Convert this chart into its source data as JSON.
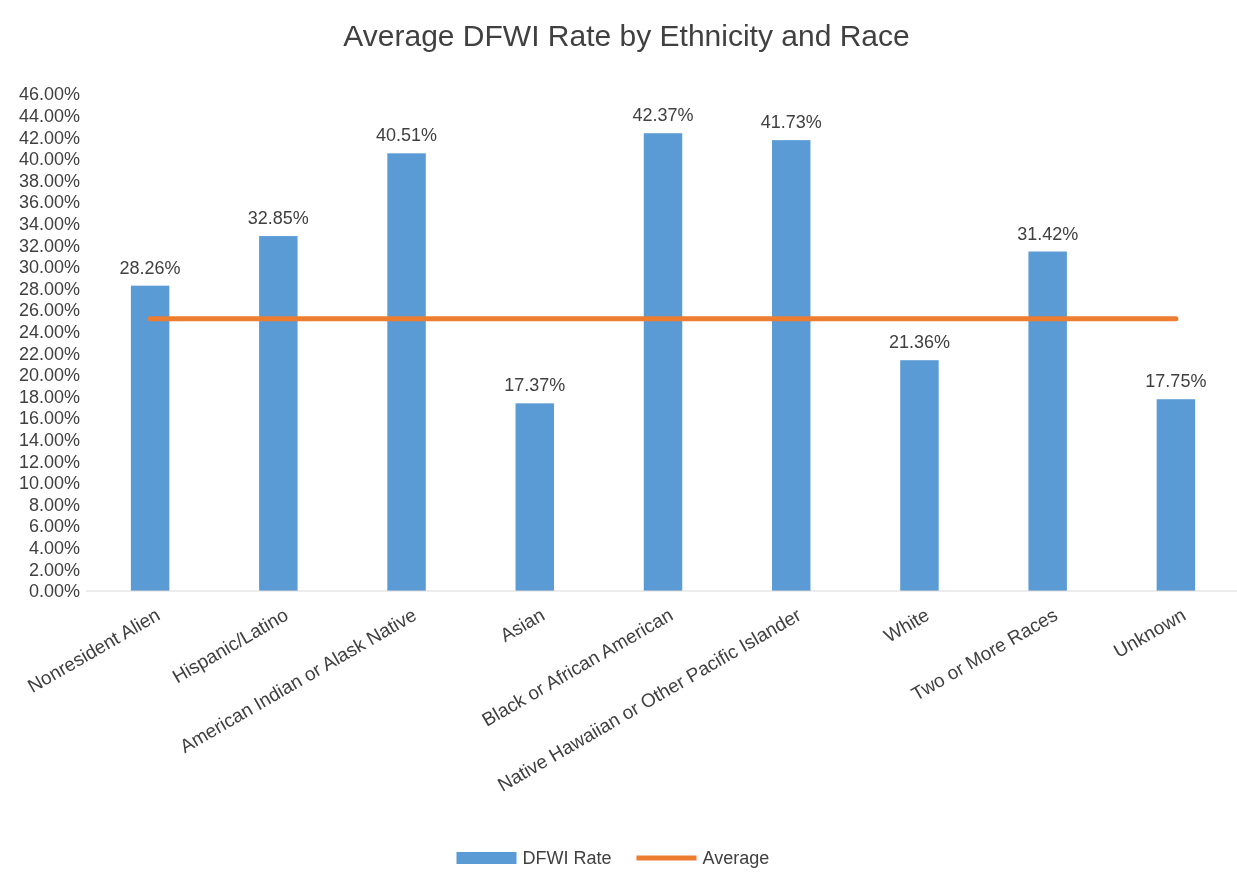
{
  "chart_data": {
    "type": "bar",
    "title": "Average DFWI Rate by Ethnicity and Race",
    "categories": [
      "Nonresident Alien",
      "Hispanic/Latino",
      "American Indian or Alask Native",
      "Asian",
      "Black or African American",
      "Native Hawaiian or Other Pacific Islander",
      "White",
      "Two or More Races",
      "Unknown"
    ],
    "series": [
      {
        "name": "DFWI Rate",
        "color": "#5b9bd5",
        "values": [
          28.26,
          32.85,
          40.51,
          17.37,
          42.37,
          41.73,
          21.36,
          31.42,
          17.75
        ],
        "value_labels": [
          "28.26%",
          "32.85%",
          "40.51%",
          "17.37%",
          "42.37%",
          "41.73%",
          "21.36%",
          "31.42%",
          "17.75%"
        ]
      },
      {
        "name": "Average",
        "type": "line",
        "color": "#ed7d31",
        "values": [
          25.2,
          25.2,
          25.2,
          25.2,
          25.2,
          25.2,
          25.2,
          25.2,
          25.2
        ]
      }
    ],
    "ylim": [
      0,
      46
    ],
    "yticks": [
      {
        "value": 0,
        "label": "0.00%"
      },
      {
        "value": 2,
        "label": "2.00%"
      },
      {
        "value": 4,
        "label": "4.00%"
      },
      {
        "value": 6,
        "label": "6.00%"
      },
      {
        "value": 8,
        "label": "8.00%"
      },
      {
        "value": 10,
        "label": "10.00%"
      },
      {
        "value": 12,
        "label": "12.00%"
      },
      {
        "value": 14,
        "label": "14.00%"
      },
      {
        "value": 16,
        "label": "16.00%"
      },
      {
        "value": 18,
        "label": "18.00%"
      },
      {
        "value": 20,
        "label": "20.00%"
      },
      {
        "value": 22,
        "label": "22.00%"
      },
      {
        "value": 24,
        "label": "24.00%"
      },
      {
        "value": 26,
        "label": "26.00%"
      },
      {
        "value": 28,
        "label": "28.00%"
      },
      {
        "value": 30,
        "label": "30.00%"
      },
      {
        "value": 32,
        "label": "32.00%"
      },
      {
        "value": 34,
        "label": "34.00%"
      },
      {
        "value": 36,
        "label": "36.00%"
      },
      {
        "value": 38,
        "label": "38.00%"
      },
      {
        "value": 40,
        "label": "40.00%"
      },
      {
        "value": 42,
        "label": "42.00%"
      },
      {
        "value": 44,
        "label": "44.00%"
      },
      {
        "value": 46,
        "label": "46.00%"
      }
    ],
    "grid": false,
    "legend": "bottom"
  }
}
